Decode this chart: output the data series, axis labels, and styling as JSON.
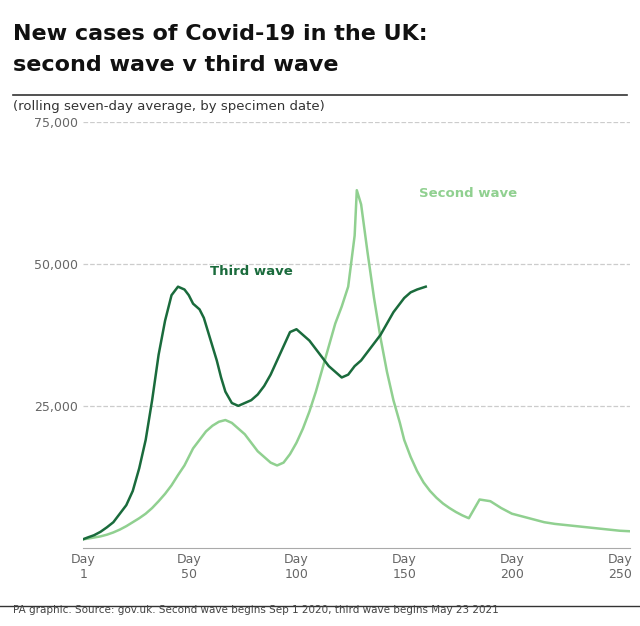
{
  "title_line1": "New cases of Covid-19 in the UK:",
  "title_line2": "second wave v third wave",
  "subtitle": "(rolling seven-day average, by specimen date)",
  "footnote": "PA graphic. Source: gov.uk. Second wave begins Sep 1 2020, third wave begins May 23 2021",
  "xlabel_ticks": [
    1,
    50,
    100,
    150,
    200,
    250
  ],
  "ylim": [
    0,
    75000
  ],
  "yticks": [
    25000,
    50000,
    75000
  ],
  "ytick_labels": [
    "25,000",
    "50,000",
    "75,000"
  ],
  "xlim": [
    1,
    255
  ],
  "second_wave_color": "#90d090",
  "third_wave_color": "#1a6b3c",
  "background_color": "#ffffff",
  "grid_color": "#cccccc",
  "spine_color": "#aaaaaa",
  "second_wave_label": "Second wave",
  "third_wave_label": "Third wave",
  "second_wave_x": [
    1,
    3,
    6,
    9,
    12,
    15,
    18,
    21,
    24,
    27,
    30,
    33,
    36,
    39,
    42,
    45,
    48,
    50,
    52,
    55,
    58,
    61,
    64,
    67,
    70,
    73,
    76,
    79,
    82,
    85,
    88,
    91,
    94,
    97,
    100,
    103,
    106,
    109,
    112,
    115,
    118,
    121,
    124,
    127,
    128,
    130,
    133,
    136,
    139,
    142,
    145,
    148,
    150,
    153,
    156,
    159,
    162,
    165,
    168,
    171,
    174,
    177,
    180,
    185,
    190,
    195,
    200,
    205,
    210,
    215,
    220,
    225,
    230,
    235,
    240,
    245,
    250,
    255
  ],
  "second_wave_y": [
    1500,
    1600,
    1800,
    2000,
    2300,
    2700,
    3200,
    3800,
    4500,
    5200,
    6000,
    7000,
    8200,
    9500,
    11000,
    12800,
    14500,
    16000,
    17500,
    19000,
    20500,
    21500,
    22200,
    22500,
    22000,
    21000,
    20000,
    18500,
    17000,
    16000,
    15000,
    14500,
    15000,
    16500,
    18500,
    21000,
    24000,
    27500,
    31500,
    35500,
    39500,
    42500,
    46000,
    55000,
    63000,
    60500,
    52000,
    44000,
    37000,
    31000,
    26000,
    22000,
    19000,
    16000,
    13500,
    11500,
    10000,
    8800,
    7800,
    7000,
    6300,
    5700,
    5200,
    8500,
    8200,
    7000,
    6000,
    5500,
    5000,
    4500,
    4200,
    4000,
    3800,
    3600,
    3400,
    3200,
    3000,
    2900
  ],
  "third_wave_x": [
    1,
    3,
    6,
    9,
    12,
    15,
    18,
    21,
    24,
    27,
    30,
    33,
    36,
    39,
    42,
    45,
    48,
    50,
    52,
    55,
    57,
    59,
    61,
    63,
    65,
    67,
    70,
    73,
    76,
    79,
    82,
    85,
    88,
    91,
    94,
    97,
    100,
    103,
    106,
    109,
    112,
    115,
    118,
    121,
    124,
    127,
    130,
    133,
    136,
    139,
    142,
    145,
    148,
    150,
    153,
    156,
    160
  ],
  "third_wave_y": [
    1500,
    1800,
    2200,
    2800,
    3600,
    4500,
    6000,
    7500,
    10000,
    14000,
    19000,
    26000,
    34000,
    40000,
    44500,
    46000,
    45500,
    44500,
    43000,
    42000,
    40500,
    38000,
    35500,
    33000,
    30000,
    27500,
    25500,
    25000,
    25500,
    26000,
    27000,
    28500,
    30500,
    33000,
    35500,
    38000,
    38500,
    37500,
    36500,
    35000,
    33500,
    32000,
    31000,
    30000,
    30500,
    32000,
    33000,
    34500,
    36000,
    37500,
    39500,
    41500,
    43000,
    44000,
    45000,
    45500,
    46000
  ]
}
